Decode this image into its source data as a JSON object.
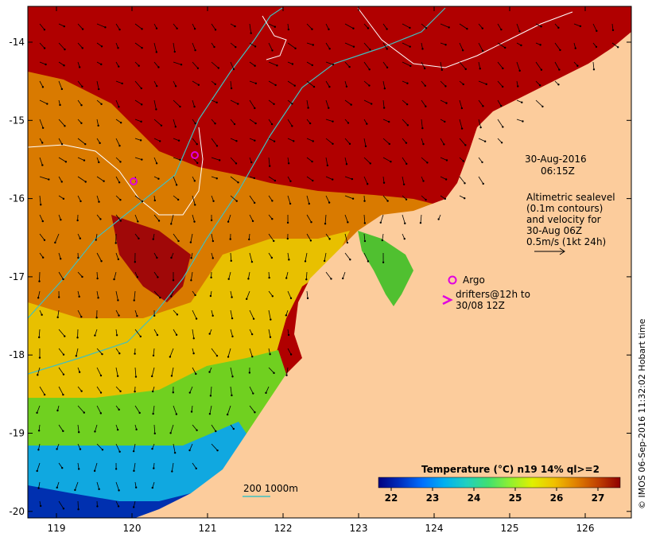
{
  "map": {
    "date_label": "30-Aug-2016",
    "time_label": "06:15Z",
    "altimetry_note": [
      "Altimetric sealevel",
      "(0.1m contours)",
      "and velocity for",
      "30-Aug 06Z",
      "0.5m/s (1kt 24h)"
    ],
    "argo_label": "Argo",
    "drifters_label": [
      "drifters@12h to",
      "30/08 12Z"
    ],
    "depth_legend": "200  1000m",
    "credit": "© IMOS 06-Sep-2016 11:32:02 Hobart time",
    "y_ticks": [
      "-14",
      "-15",
      "-16",
      "-17",
      "-18",
      "-19",
      "-20"
    ],
    "x_ticks": [
      "119",
      "120",
      "121",
      "122",
      "123",
      "124",
      "125",
      "126"
    ],
    "colorbar": {
      "title": "Temperature (°C) n19 14% ql>=2",
      "ticks": [
        "22",
        "23",
        "24",
        "25",
        "26",
        "27"
      ],
      "colors": [
        "#000080",
        "#0030c0",
        "#0070ff",
        "#00b0f0",
        "#20d0c0",
        "#40e070",
        "#90f030",
        "#e0f000",
        "#f0c000",
        "#e08000",
        "#c04000",
        "#900000"
      ]
    },
    "colors": {
      "land": "#fccc9c",
      "hot": "#a00000",
      "warm": "#e08a00",
      "argo": "#e000e0",
      "isobath": "#40c0c0",
      "contour": "#ffffff"
    }
  }
}
